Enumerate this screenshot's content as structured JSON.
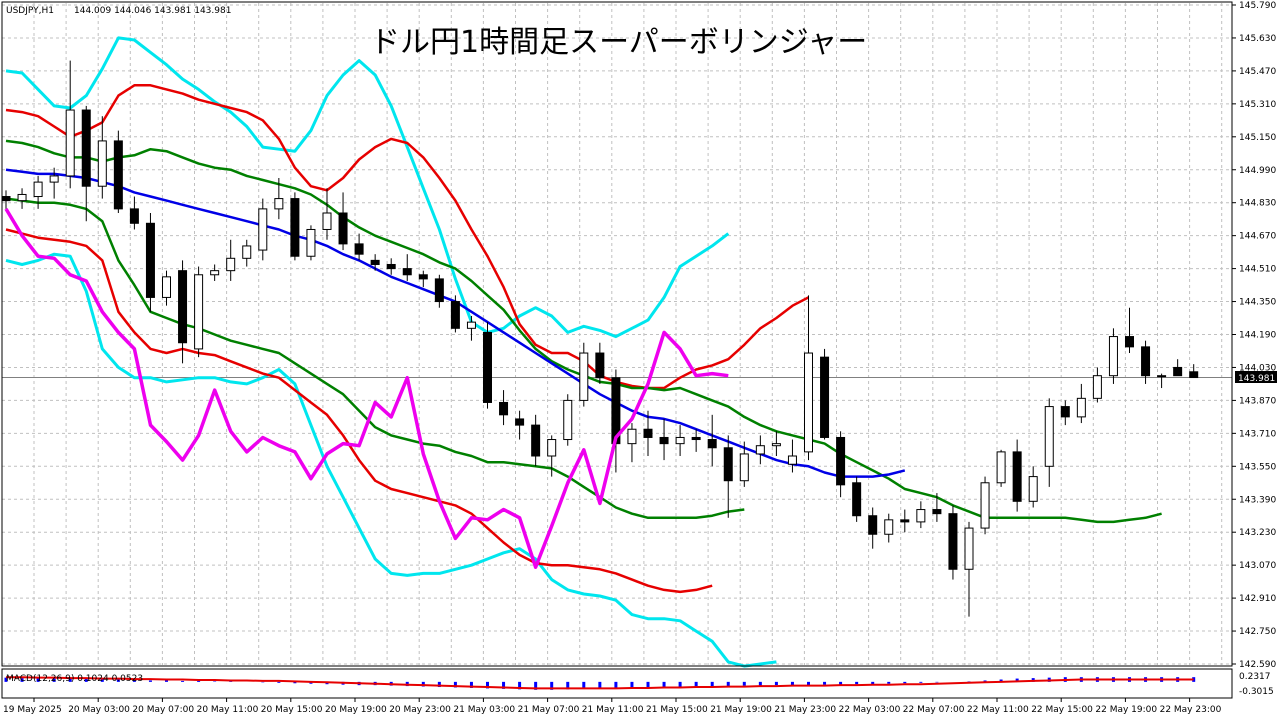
{
  "chart_title": "ドル円1時間足スーパーボリンジャー",
  "symbol_label": "USDJPY,H1",
  "ohlc_header": "144.009 144.046 143.981 143.981",
  "macd_label": "MACD(12,26,9) 0.1024 0.0523",
  "current_price_label": "143.981",
  "colors": {
    "outer_band": "#00e6ee",
    "sigma2": "#e60000",
    "sigma1": "#008000",
    "middle": "#0000e6",
    "lagging_span": "#ee00ee",
    "macd_hist": "#0000ff",
    "macd_signal": "#e60000",
    "grid": "#c0c0c0",
    "price_tag_bg": "#000000"
  },
  "chart_data": {
    "type": "candlestick",
    "timeframe": "H1",
    "ylim": [
      142.51,
      145.79
    ],
    "y_ticks": [
      "145.790",
      "145.630",
      "145.470",
      "145.310",
      "145.150",
      "144.990",
      "144.830",
      "144.670",
      "144.510",
      "144.350",
      "144.190",
      "144.030",
      "143.870",
      "143.710",
      "143.550",
      "143.390",
      "143.230",
      "143.070",
      "142.910",
      "142.750",
      "142.590"
    ],
    "x_labels": [
      "19 May 2025",
      "20 May 03:00",
      "20 May 07:00",
      "20 May 11:00",
      "20 May 15:00",
      "20 May 19:00",
      "20 May 23:00",
      "21 May 03:00",
      "21 May 07:00",
      "21 May 11:00",
      "21 May 15:00",
      "21 May 19:00",
      "21 May 23:00",
      "22 May 03:00",
      "22 May 07:00",
      "22 May 11:00",
      "22 May 15:00",
      "22 May 19:00",
      "22 May 23:00"
    ],
    "candles": [
      {
        "o": 144.86,
        "h": 144.89,
        "l": 144.8,
        "c": 144.84
      },
      {
        "o": 144.84,
        "h": 144.9,
        "l": 144.8,
        "c": 144.87
      },
      {
        "o": 144.86,
        "h": 144.96,
        "l": 144.8,
        "c": 144.93
      },
      {
        "o": 144.93,
        "h": 145.0,
        "l": 144.85,
        "c": 144.96
      },
      {
        "o": 144.96,
        "h": 145.52,
        "l": 144.9,
        "c": 145.28
      },
      {
        "o": 145.28,
        "h": 145.3,
        "l": 144.74,
        "c": 144.91
      },
      {
        "o": 144.91,
        "h": 145.25,
        "l": 144.85,
        "c": 145.13
      },
      {
        "o": 145.13,
        "h": 145.18,
        "l": 144.78,
        "c": 144.8
      },
      {
        "o": 144.8,
        "h": 144.86,
        "l": 144.7,
        "c": 144.73
      },
      {
        "o": 144.73,
        "h": 144.78,
        "l": 144.3,
        "c": 144.37
      },
      {
        "o": 144.37,
        "h": 144.5,
        "l": 144.33,
        "c": 144.47
      },
      {
        "o": 144.5,
        "h": 144.55,
        "l": 144.05,
        "c": 144.15
      },
      {
        "o": 144.12,
        "h": 144.52,
        "l": 144.08,
        "c": 144.48
      },
      {
        "o": 144.48,
        "h": 144.53,
        "l": 144.45,
        "c": 144.5
      },
      {
        "o": 144.5,
        "h": 144.65,
        "l": 144.45,
        "c": 144.56
      },
      {
        "o": 144.56,
        "h": 144.65,
        "l": 144.52,
        "c": 144.62
      },
      {
        "o": 144.6,
        "h": 144.85,
        "l": 144.55,
        "c": 144.8
      },
      {
        "o": 144.8,
        "h": 144.95,
        "l": 144.75,
        "c": 144.85
      },
      {
        "o": 144.85,
        "h": 144.88,
        "l": 144.55,
        "c": 144.57
      },
      {
        "o": 144.57,
        "h": 144.72,
        "l": 144.55,
        "c": 144.7
      },
      {
        "o": 144.7,
        "h": 144.9,
        "l": 144.65,
        "c": 144.78
      },
      {
        "o": 144.78,
        "h": 144.88,
        "l": 144.6,
        "c": 144.63
      },
      {
        "o": 144.63,
        "h": 144.68,
        "l": 144.55,
        "c": 144.58
      },
      {
        "o": 144.55,
        "h": 144.58,
        "l": 144.5,
        "c": 144.53
      },
      {
        "o": 144.53,
        "h": 144.56,
        "l": 144.48,
        "c": 144.51
      },
      {
        "o": 144.51,
        "h": 144.58,
        "l": 144.45,
        "c": 144.48
      },
      {
        "o": 144.48,
        "h": 144.5,
        "l": 144.42,
        "c": 144.46
      },
      {
        "o": 144.46,
        "h": 144.48,
        "l": 144.32,
        "c": 144.35
      },
      {
        "o": 144.35,
        "h": 144.38,
        "l": 144.2,
        "c": 144.22
      },
      {
        "o": 144.22,
        "h": 144.28,
        "l": 144.16,
        "c": 144.25
      },
      {
        "o": 144.2,
        "h": 144.25,
        "l": 143.83,
        "c": 143.86
      },
      {
        "o": 143.86,
        "h": 143.92,
        "l": 143.75,
        "c": 143.8
      },
      {
        "o": 143.78,
        "h": 143.82,
        "l": 143.68,
        "c": 143.75
      },
      {
        "o": 143.75,
        "h": 143.8,
        "l": 143.55,
        "c": 143.6
      },
      {
        "o": 143.6,
        "h": 143.7,
        "l": 143.5,
        "c": 143.68
      },
      {
        "o": 143.68,
        "h": 143.9,
        "l": 143.65,
        "c": 143.87
      },
      {
        "o": 143.87,
        "h": 144.15,
        "l": 143.84,
        "c": 144.1
      },
      {
        "o": 144.1,
        "h": 144.15,
        "l": 143.95,
        "c": 143.98
      },
      {
        "o": 143.98,
        "h": 144.02,
        "l": 143.52,
        "c": 143.66
      },
      {
        "o": 143.66,
        "h": 143.76,
        "l": 143.57,
        "c": 143.73
      },
      {
        "o": 143.73,
        "h": 143.82,
        "l": 143.6,
        "c": 143.69
      },
      {
        "o": 143.69,
        "h": 143.78,
        "l": 143.58,
        "c": 143.66
      },
      {
        "o": 143.66,
        "h": 143.75,
        "l": 143.6,
        "c": 143.69
      },
      {
        "o": 143.69,
        "h": 143.73,
        "l": 143.62,
        "c": 143.68
      },
      {
        "o": 143.68,
        "h": 143.8,
        "l": 143.55,
        "c": 143.64
      },
      {
        "o": 143.64,
        "h": 143.7,
        "l": 143.3,
        "c": 143.48
      },
      {
        "o": 143.48,
        "h": 143.67,
        "l": 143.45,
        "c": 143.61
      },
      {
        "o": 143.61,
        "h": 143.7,
        "l": 143.56,
        "c": 143.65
      },
      {
        "o": 143.65,
        "h": 143.72,
        "l": 143.6,
        "c": 143.66
      },
      {
        "o": 143.56,
        "h": 143.68,
        "l": 143.52,
        "c": 143.6
      },
      {
        "o": 143.62,
        "h": 144.38,
        "l": 143.58,
        "c": 144.1
      },
      {
        "o": 144.08,
        "h": 144.12,
        "l": 143.68,
        "c": 143.69
      },
      {
        "o": 143.69,
        "h": 143.72,
        "l": 143.4,
        "c": 143.46
      },
      {
        "o": 143.47,
        "h": 143.5,
        "l": 143.28,
        "c": 143.31
      },
      {
        "o": 143.31,
        "h": 143.35,
        "l": 143.15,
        "c": 143.22
      },
      {
        "o": 143.22,
        "h": 143.32,
        "l": 143.18,
        "c": 143.29
      },
      {
        "o": 143.29,
        "h": 143.34,
        "l": 143.23,
        "c": 143.28
      },
      {
        "o": 143.28,
        "h": 143.38,
        "l": 143.25,
        "c": 143.34
      },
      {
        "o": 143.34,
        "h": 143.42,
        "l": 143.28,
        "c": 143.32
      },
      {
        "o": 143.32,
        "h": 143.36,
        "l": 143.0,
        "c": 143.05
      },
      {
        "o": 143.05,
        "h": 143.28,
        "l": 142.82,
        "c": 143.25
      },
      {
        "o": 143.25,
        "h": 143.5,
        "l": 143.22,
        "c": 143.47
      },
      {
        "o": 143.47,
        "h": 143.63,
        "l": 143.45,
        "c": 143.62
      },
      {
        "o": 143.62,
        "h": 143.68,
        "l": 143.33,
        "c": 143.38
      },
      {
        "o": 143.38,
        "h": 143.55,
        "l": 143.35,
        "c": 143.5
      },
      {
        "o": 143.55,
        "h": 143.88,
        "l": 143.45,
        "c": 143.84
      },
      {
        "o": 143.84,
        "h": 143.87,
        "l": 143.75,
        "c": 143.79
      },
      {
        "o": 143.79,
        "h": 143.95,
        "l": 143.76,
        "c": 143.88
      },
      {
        "o": 143.88,
        "h": 144.03,
        "l": 143.86,
        "c": 143.99
      },
      {
        "o": 143.99,
        "h": 144.22,
        "l": 143.95,
        "c": 144.18
      },
      {
        "o": 144.18,
        "h": 144.32,
        "l": 144.1,
        "c": 144.13
      },
      {
        "o": 144.13,
        "h": 144.16,
        "l": 143.95,
        "c": 143.99
      },
      {
        "o": 143.99,
        "h": 144.0,
        "l": 143.93,
        "c": 143.99
      },
      {
        "o": 144.03,
        "h": 144.07,
        "l": 143.99,
        "c": 143.99
      },
      {
        "o": 144.009,
        "h": 144.046,
        "l": 143.981,
        "c": 143.981
      }
    ],
    "bb_middle": [
      144.99,
      144.98,
      144.97,
      144.97,
      144.96,
      144.95,
      144.93,
      144.91,
      144.88,
      144.86,
      144.84,
      144.82,
      144.8,
      144.78,
      144.76,
      144.74,
      144.72,
      144.7,
      144.67,
      144.65,
      144.62,
      144.58,
      144.55,
      144.51,
      144.47,
      144.44,
      144.41,
      144.38,
      144.35,
      144.3,
      144.25,
      144.2,
      144.15,
      144.1,
      144.05,
      144.0,
      143.95,
      143.9,
      143.86,
      143.82,
      143.79,
      143.78,
      143.76,
      143.73,
      143.7,
      143.67,
      143.64,
      143.61,
      143.58,
      143.56,
      143.55,
      143.52,
      143.5,
      143.5,
      143.5,
      143.51,
      143.53
    ],
    "bb_plus1": [
      145.13,
      145.12,
      145.1,
      145.07,
      145.05,
      145.05,
      145.03,
      145.05,
      145.06,
      145.09,
      145.08,
      145.05,
      145.02,
      145.0,
      144.99,
      144.96,
      144.94,
      144.92,
      144.9,
      144.87,
      144.82,
      144.76,
      144.71,
      144.67,
      144.64,
      144.61,
      144.58,
      144.54,
      144.51,
      144.45,
      144.38,
      144.31,
      144.21,
      144.12,
      144.06,
      144.02,
      143.99,
      143.96,
      143.95,
      143.93,
      143.93,
      143.92,
      143.93,
      143.9,
      143.87,
      143.84,
      143.79,
      143.75,
      143.72,
      143.7,
      143.68,
      143.66,
      143.61,
      143.57,
      143.53,
      143.49,
      143.44,
      143.42,
      143.4,
      143.36,
      143.33,
      143.3,
      143.3,
      143.3,
      143.3,
      143.3,
      143.3,
      143.29,
      143.28,
      143.28,
      143.29,
      143.3,
      143.32
    ],
    "bb_plus2": [
      145.28,
      145.27,
      145.25,
      145.2,
      145.15,
      145.18,
      145.22,
      145.35,
      145.4,
      145.4,
      145.38,
      145.36,
      145.33,
      145.31,
      145.29,
      145.27,
      145.23,
      145.14,
      145.0,
      144.91,
      144.89,
      144.95,
      145.04,
      145.1,
      145.14,
      145.12,
      145.05,
      144.95,
      144.84,
      144.7,
      144.57,
      144.42,
      144.24,
      144.14,
      144.1,
      144.1,
      144.06,
      143.99,
      143.96,
      143.94,
      143.93,
      143.93,
      143.98,
      144.02,
      144.04,
      144.07,
      144.14,
      144.22,
      144.27,
      144.33,
      144.37
    ],
    "bb_plus3": [
      145.47,
      145.46,
      145.38,
      145.3,
      145.29,
      145.35,
      145.48,
      145.63,
      145.62,
      145.56,
      145.5,
      145.43,
      145.38,
      145.32,
      145.27,
      145.2,
      145.1,
      145.09,
      145.08,
      145.18,
      145.35,
      145.45,
      145.52,
      145.45,
      145.3,
      145.1,
      144.9,
      144.7,
      144.46,
      144.25,
      144.2,
      144.22,
      144.28,
      144.32,
      144.28,
      144.2,
      144.23,
      144.21,
      144.18,
      144.22,
      144.26,
      144.37,
      144.52,
      144.57,
      144.62,
      144.68
    ],
    "bb_minus1": [
      144.85,
      144.84,
      144.83,
      144.83,
      144.82,
      144.8,
      144.74,
      144.55,
      144.43,
      144.3,
      144.27,
      144.24,
      144.22,
      144.19,
      144.16,
      144.14,
      144.12,
      144.1,
      144.05,
      144.0,
      143.95,
      143.9,
      143.82,
      143.74,
      143.7,
      143.68,
      143.66,
      143.65,
      143.62,
      143.6,
      143.57,
      143.57,
      143.56,
      143.55,
      143.54,
      143.5,
      143.45,
      143.4,
      143.35,
      143.32,
      143.3,
      143.3,
      143.3,
      143.3,
      143.31,
      143.33,
      143.34
    ],
    "bb_minus2": [
      144.7,
      144.68,
      144.66,
      144.65,
      144.64,
      144.62,
      144.55,
      144.3,
      144.2,
      144.12,
      144.1,
      144.12,
      144.1,
      144.09,
      144.06,
      144.03,
      144.0,
      143.98,
      143.92,
      143.86,
      143.8,
      143.7,
      143.58,
      143.48,
      143.44,
      143.42,
      143.4,
      143.38,
      143.36,
      143.32,
      143.25,
      143.18,
      143.12,
      143.08,
      143.07,
      143.07,
      143.06,
      143.05,
      143.03,
      143.0,
      142.97,
      142.95,
      142.94,
      142.95,
      142.97
    ],
    "bb_minus3": [
      144.55,
      144.53,
      144.55,
      144.58,
      144.57,
      144.4,
      144.12,
      144.03,
      143.98,
      143.98,
      143.96,
      143.97,
      143.98,
      143.98,
      143.96,
      143.95,
      143.98,
      144.02,
      143.95,
      143.75,
      143.55,
      143.4,
      143.25,
      143.1,
      143.03,
      143.02,
      143.03,
      143.03,
      143.05,
      143.07,
      143.1,
      143.13,
      143.15,
      143.1,
      143.0,
      142.95,
      142.93,
      142.92,
      142.9,
      142.83,
      142.81,
      142.81,
      142.8,
      142.75,
      142.7,
      142.6,
      142.58,
      142.59,
      142.6
    ],
    "lagging_span": [
      144.8,
      144.67,
      144.57,
      144.56,
      144.48,
      144.45,
      144.3,
      144.2,
      144.12,
      143.75,
      143.67,
      143.58,
      143.7,
      143.92,
      143.72,
      143.62,
      143.69,
      143.65,
      143.62,
      143.49,
      143.61,
      143.66,
      143.65,
      143.86,
      143.79,
      143.98,
      143.61,
      143.38,
      143.2,
      143.3,
      143.29,
      143.34,
      143.3,
      143.06,
      143.26,
      143.47,
      143.63,
      143.37,
      143.69,
      143.78,
      143.95,
      144.2,
      144.12,
      143.99,
      144.0,
      143.99
    ],
    "macd": {
      "values": [
        0.09,
        0.08,
        0.08,
        0.07,
        0.07,
        0.06,
        0.05,
        0.05,
        0.04,
        0.03,
        0.03,
        0.02,
        0.02,
        0.01,
        0.01,
        0.0,
        -0.01,
        -0.02,
        -0.03,
        -0.04,
        -0.05,
        -0.06,
        -0.07,
        -0.07,
        -0.08,
        -0.09,
        -0.1,
        -0.11,
        -0.12,
        -0.13,
        -0.14,
        -0.15,
        -0.16,
        -0.17,
        -0.17,
        -0.16,
        -0.15,
        -0.14,
        -0.14,
        -0.13,
        -0.12,
        -0.11,
        -0.1,
        -0.1,
        -0.09,
        -0.09,
        -0.08,
        -0.08,
        -0.07,
        -0.07,
        -0.07,
        -0.06,
        -0.06,
        -0.05,
        -0.05,
        -0.04,
        -0.03,
        -0.02,
        -0.01,
        0.0,
        0.01,
        0.03,
        0.05,
        0.07,
        0.08,
        0.09,
        0.1,
        0.1,
        0.1,
        0.1,
        0.1,
        0.1,
        0.1,
        0.1,
        0.1
      ],
      "signal": [
        0.1,
        0.1,
        0.09,
        0.09,
        0.08,
        0.08,
        0.07,
        0.07,
        0.06,
        0.06,
        0.05,
        0.05,
        0.04,
        0.04,
        0.03,
        0.03,
        0.02,
        0.02,
        0.01,
        0.0,
        -0.01,
        -0.02,
        -0.03,
        -0.04,
        -0.05,
        -0.06,
        -0.07,
        -0.08,
        -0.09,
        -0.1,
        -0.11,
        -0.12,
        -0.13,
        -0.14,
        -0.14,
        -0.14,
        -0.14,
        -0.14,
        -0.14,
        -0.13,
        -0.13,
        -0.12,
        -0.12,
        -0.11,
        -0.11,
        -0.1,
        -0.1,
        -0.09,
        -0.09,
        -0.08,
        -0.08,
        -0.08,
        -0.07,
        -0.07,
        -0.06,
        -0.06,
        -0.05,
        -0.05,
        -0.04,
        -0.03,
        -0.02,
        -0.01,
        0.0,
        0.01,
        0.02,
        0.03,
        0.04,
        0.05,
        0.05,
        0.05,
        0.05,
        0.05,
        0.05,
        0.05,
        0.05
      ],
      "y_ticks": [
        "0.2317",
        "0.0",
        "-0.3015"
      ]
    },
    "grid": true,
    "legend": "none"
  }
}
